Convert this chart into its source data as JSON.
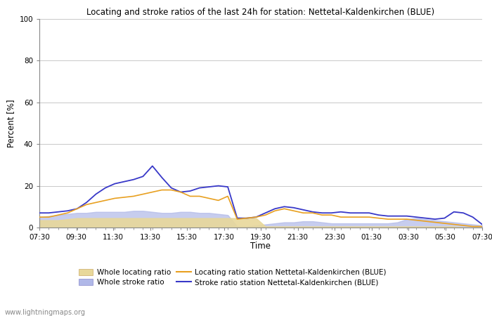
{
  "title": "Locating and stroke ratios of the last 24h for station: Nettetal-Kaldenkirchen (BLUE)",
  "ylabel": "Percent [%]",
  "xlabel": "Time",
  "watermark": "www.lightningmaps.org",
  "ylim": [
    0,
    100
  ],
  "yticks": [
    0,
    20,
    40,
    60,
    80,
    100
  ],
  "xtick_labels": [
    "07:30",
    "09:30",
    "11:30",
    "13:30",
    "15:30",
    "17:30",
    "19:30",
    "21:30",
    "23:30",
    "01:30",
    "03:30",
    "05:30",
    "07:30"
  ],
  "legend": {
    "whole_loc_label": "Whole locating ratio",
    "whole_stroke_label": "Whole stroke ratio",
    "loc_station_label": "Locating ratio station Nettetal-Kaldenkirchen (BLUE)",
    "stroke_station_label": "Stroke ratio station Nettetal-Kaldenkirchen (BLUE)"
  },
  "colors": {
    "whole_loc_fill": "#e8d89a",
    "whole_stroke_fill": "#b0b8e8",
    "loc_station_line": "#e8a020",
    "stroke_station_line": "#3838c8",
    "background": "#ffffff",
    "grid": "#c8c8c8"
  },
  "x_indices": [
    0,
    1,
    2,
    3,
    4,
    5,
    6,
    7,
    8,
    9,
    10,
    11,
    12,
    13,
    14,
    15,
    16,
    17,
    18,
    19,
    20,
    21,
    22,
    23,
    24,
    25,
    26,
    27,
    28,
    29,
    30,
    31,
    32,
    33,
    34,
    35,
    36,
    37,
    38,
    39,
    40,
    41,
    42,
    43,
    44,
    45,
    46,
    47
  ],
  "whole_loc": [
    3.5,
    3.5,
    3.5,
    4.0,
    4.5,
    4.5,
    4.5,
    4.5,
    4.5,
    4.5,
    4.5,
    4.5,
    4.5,
    4.5,
    4.5,
    4.5,
    4.5,
    4.5,
    4.5,
    4.5,
    4.5,
    4.5,
    4.5,
    4.5,
    0.5,
    0.5,
    0.5,
    0.5,
    0.5,
    0.5,
    0.5,
    0.5,
    0.5,
    0.5,
    0.5,
    0.5,
    0.5,
    0.5,
    0.5,
    0.5,
    0.5,
    0.5,
    0.5,
    0.5,
    0.5,
    0.0,
    0.0,
    0.0
  ],
  "whole_stroke": [
    5.0,
    5.5,
    6.0,
    6.5,
    7.0,
    7.0,
    7.5,
    7.5,
    7.5,
    7.5,
    8.0,
    8.0,
    7.5,
    7.0,
    7.0,
    7.5,
    7.5,
    7.0,
    7.0,
    6.5,
    6.0,
    0.5,
    0.5,
    1.0,
    1.5,
    2.0,
    2.5,
    2.5,
    3.0,
    3.0,
    2.5,
    2.0,
    2.0,
    2.0,
    2.0,
    2.0,
    2.0,
    2.0,
    2.5,
    4.0,
    4.5,
    4.0,
    3.5,
    3.0,
    2.5,
    2.0,
    1.5,
    1.0
  ],
  "loc_station": [
    5.0,
    5.0,
    6.0,
    7.0,
    9.0,
    11.0,
    12.0,
    13.0,
    14.0,
    14.5,
    15.0,
    16.0,
    17.0,
    18.0,
    18.0,
    17.0,
    15.0,
    15.0,
    14.0,
    13.0,
    15.0,
    4.0,
    4.5,
    5.0,
    6.0,
    8.0,
    9.0,
    8.0,
    7.0,
    7.0,
    6.0,
    6.0,
    5.0,
    5.0,
    5.0,
    5.0,
    4.5,
    4.0,
    4.0,
    4.0,
    3.5,
    3.0,
    2.5,
    2.0,
    1.5,
    1.0,
    0.5,
    0.5
  ],
  "stroke_station": [
    7.0,
    7.0,
    7.5,
    8.0,
    9.0,
    12.0,
    16.0,
    19.0,
    21.0,
    22.0,
    23.0,
    24.5,
    29.5,
    24.0,
    19.0,
    17.0,
    17.5,
    19.0,
    19.5,
    20.0,
    19.5,
    4.5,
    4.5,
    5.0,
    7.0,
    9.0,
    10.0,
    9.5,
    8.5,
    7.5,
    7.0,
    7.0,
    7.5,
    7.0,
    7.0,
    7.0,
    6.0,
    5.5,
    5.5,
    5.5,
    5.0,
    4.5,
    4.0,
    4.5,
    7.5,
    7.0,
    5.0,
    1.5
  ]
}
